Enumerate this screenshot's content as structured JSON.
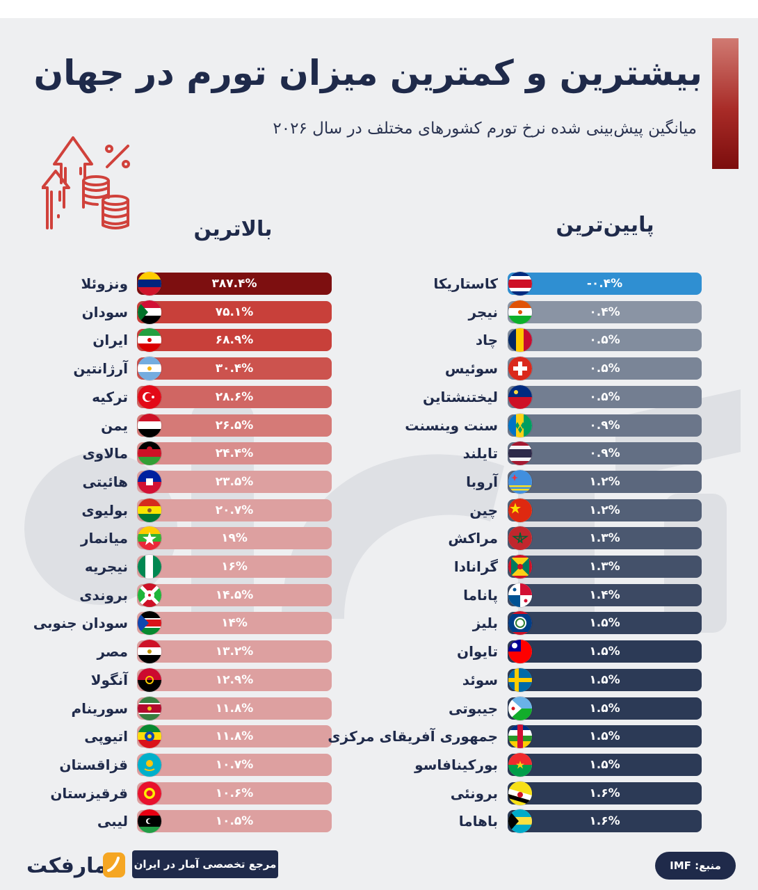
{
  "header": {
    "title": "بیشترین و کمترین میزان تورم در جهان",
    "subtitle": "میانگین پیش‌بینی شده نرخ تورم کشورهای مختلف در سال ۲۰۲۶"
  },
  "colors": {
    "highest_max": "#7d0f10",
    "highest_strong": "#c8403a",
    "highest_light": "#dda0a0",
    "lowest_first": "#2f8fd2",
    "lowest_start": "#8a94a4",
    "lowest_end": "#2c3a56",
    "title_accent": "#a82b27",
    "dark_navy": "#1f2a4a"
  },
  "chart_data": [
    {
      "type": "table",
      "title": "بالاترین",
      "columns": [
        "country",
        "value_label",
        "value"
      ],
      "rows": [
        {
          "country": "ونزوئلا",
          "value_label": "۳۸۷.۴%",
          "value": 387.4,
          "flag_icon": "venezuela-flag-icon"
        },
        {
          "country": "سودان",
          "value_label": "۷۵.۱%",
          "value": 75.1,
          "flag_icon": "sudan-flag-icon"
        },
        {
          "country": "ایران",
          "value_label": "۶۸.۹%",
          "value": 68.9,
          "flag_icon": "iran-flag-icon"
        },
        {
          "country": "آرژانتین",
          "value_label": "۳۰.۴%",
          "value": 30.4,
          "flag_icon": "argentina-flag-icon"
        },
        {
          "country": "ترکیه",
          "value_label": "۲۸.۶%",
          "value": 28.6,
          "flag_icon": "turkey-flag-icon"
        },
        {
          "country": "یمن",
          "value_label": "۲۶.۵%",
          "value": 26.5,
          "flag_icon": "yemen-flag-icon"
        },
        {
          "country": "مالاوی",
          "value_label": "۲۴.۴%",
          "value": 24.4,
          "flag_icon": "malawi-flag-icon"
        },
        {
          "country": "هائیتی",
          "value_label": "۲۳.۵%",
          "value": 23.5,
          "flag_icon": "haiti-flag-icon"
        },
        {
          "country": "بولیوی",
          "value_label": "۲۰.۷%",
          "value": 20.7,
          "flag_icon": "bolivia-flag-icon"
        },
        {
          "country": "میانمار",
          "value_label": "۱۹%",
          "value": 19,
          "flag_icon": "myanmar-flag-icon"
        },
        {
          "country": "نیجریه",
          "value_label": "۱۶%",
          "value": 16,
          "flag_icon": "nigeria-flag-icon"
        },
        {
          "country": "بروندی",
          "value_label": "۱۴.۵%",
          "value": 14.5,
          "flag_icon": "burundi-flag-icon"
        },
        {
          "country": "سودان جنوبی",
          "value_label": "۱۴%",
          "value": 14,
          "flag_icon": "south-sudan-flag-icon"
        },
        {
          "country": "مصر",
          "value_label": "۱۳.۲%",
          "value": 13.2,
          "flag_icon": "egypt-flag-icon"
        },
        {
          "country": "آنگولا",
          "value_label": "۱۲.۹%",
          "value": 12.9,
          "flag_icon": "angola-flag-icon"
        },
        {
          "country": "سورینام",
          "value_label": "۱۱.۸%",
          "value": 11.8,
          "flag_icon": "suriname-flag-icon"
        },
        {
          "country": "اتیوپی",
          "value_label": "۱۱.۸%",
          "value": 11.8,
          "flag_icon": "ethiopia-flag-icon"
        },
        {
          "country": "قزاقستان",
          "value_label": "۱۰.۷%",
          "value": 10.7,
          "flag_icon": "kazakhstan-flag-icon"
        },
        {
          "country": "قرقیزستان",
          "value_label": "۱۰.۶%",
          "value": 10.6,
          "flag_icon": "kyrgyzstan-flag-icon"
        },
        {
          "country": "لیبی",
          "value_label": "۱۰.۵%",
          "value": 10.5,
          "flag_icon": "libya-flag-icon"
        }
      ]
    },
    {
      "type": "table",
      "title": "پایین‌ترین",
      "columns": [
        "country",
        "value_label",
        "value"
      ],
      "rows": [
        {
          "country": "کاستاریکا",
          "value_label": "-۰.۴%",
          "value": -0.4,
          "flag_icon": "costa-rica-flag-icon"
        },
        {
          "country": "نیجر",
          "value_label": "۰.۴%",
          "value": 0.4,
          "flag_icon": "niger-flag-icon"
        },
        {
          "country": "چاد",
          "value_label": "۰.۵%",
          "value": 0.5,
          "flag_icon": "chad-flag-icon"
        },
        {
          "country": "سوئیس",
          "value_label": "۰.۵%",
          "value": 0.5,
          "flag_icon": "switzerland-flag-icon"
        },
        {
          "country": "لیختنشتاین",
          "value_label": "۰.۵%",
          "value": 0.5,
          "flag_icon": "liechtenstein-flag-icon"
        },
        {
          "country": "سنت وینسنت",
          "value_label": "۰.۹%",
          "value": 0.9,
          "flag_icon": "saint-vincent-flag-icon"
        },
        {
          "country": "تایلند",
          "value_label": "۰.۹%",
          "value": 0.9,
          "flag_icon": "thailand-flag-icon"
        },
        {
          "country": "آروبا",
          "value_label": "۱.۲%",
          "value": 1.2,
          "flag_icon": "aruba-flag-icon"
        },
        {
          "country": "چین",
          "value_label": "۱.۲%",
          "value": 1.2,
          "flag_icon": "china-flag-icon"
        },
        {
          "country": "مراکش",
          "value_label": "۱.۳%",
          "value": 1.3,
          "flag_icon": "morocco-flag-icon"
        },
        {
          "country": "گرانادا",
          "value_label": "۱.۳%",
          "value": 1.3,
          "flag_icon": "grenada-flag-icon"
        },
        {
          "country": "پاناما",
          "value_label": "۱.۴%",
          "value": 1.4,
          "flag_icon": "panama-flag-icon"
        },
        {
          "country": "بلیز",
          "value_label": "۱.۵%",
          "value": 1.5,
          "flag_icon": "belize-flag-icon"
        },
        {
          "country": "تایوان",
          "value_label": "۱.۵%",
          "value": 1.5,
          "flag_icon": "taiwan-flag-icon"
        },
        {
          "country": "سوئد",
          "value_label": "۱.۵%",
          "value": 1.5,
          "flag_icon": "sweden-flag-icon"
        },
        {
          "country": "جیبوتی",
          "value_label": "۱.۵%",
          "value": 1.5,
          "flag_icon": "djibouti-flag-icon"
        },
        {
          "country": "جمهوری آفریقای مرکزی",
          "value_label": "۱.۵%",
          "value": 1.5,
          "flag_icon": "central-african-republic-flag-icon"
        },
        {
          "country": "بورکینافاسو",
          "value_label": "۱.۵%",
          "value": 1.5,
          "flag_icon": "burkina-faso-flag-icon"
        },
        {
          "country": "برونئی",
          "value_label": "۱.۶%",
          "value": 1.6,
          "flag_icon": "brunei-flag-icon"
        },
        {
          "country": "باهاما",
          "value_label": "۱.۶%",
          "value": 1.6,
          "flag_icon": "bahamas-flag-icon"
        }
      ]
    }
  ],
  "footer": {
    "logo_text": "آمارفکت",
    "reference_text": "مرجع تخصصی آمار در ایران",
    "source_text": "منبع: IMF"
  },
  "icons": {
    "decoration": "inflation-coins-arrows-icon",
    "logo_mark": "amarfact-logo-mark-icon"
  }
}
